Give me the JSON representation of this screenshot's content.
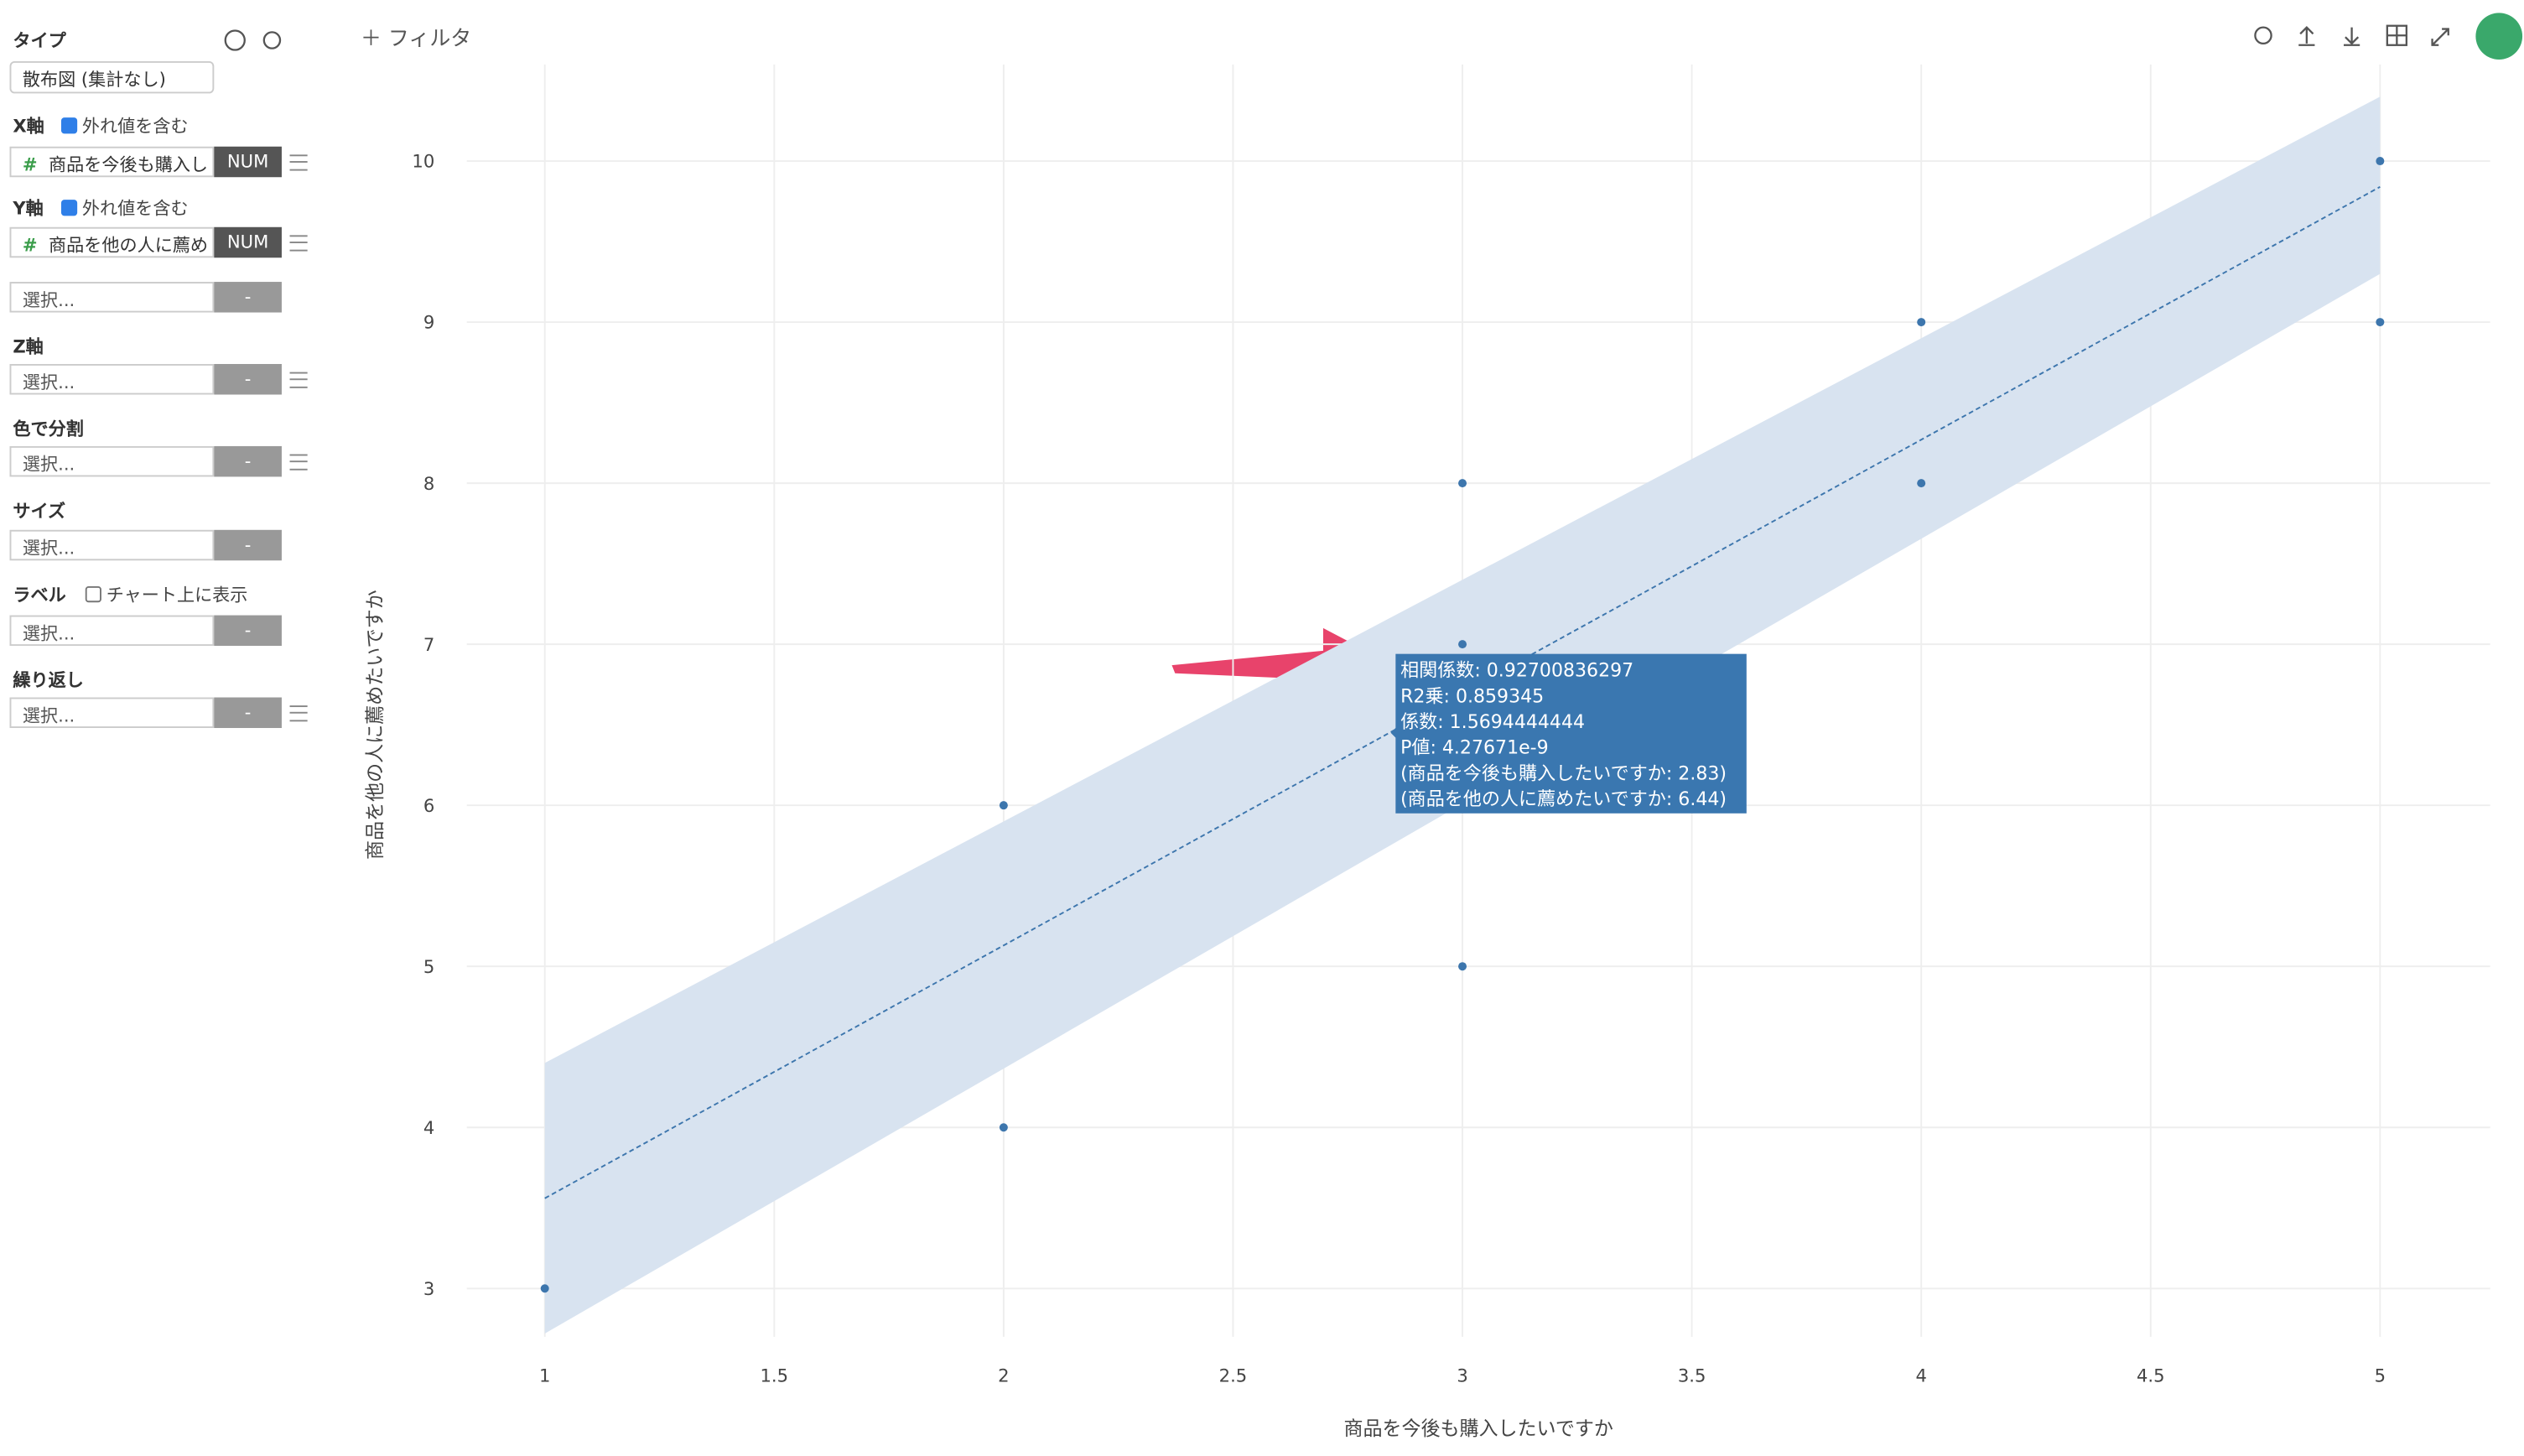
{
  "toolbar": {
    "filter": "フィルタ"
  },
  "sidebar": {
    "type_label": "タイプ",
    "type_value": "散布図 (集計なし)",
    "x_label": "X軸",
    "x_outliers": "外れ値を含む",
    "x_field": "商品を今後も購入し",
    "x_field_type": "NUM",
    "y_label": "Y軸",
    "y_outliers": "外れ値を含む",
    "y_field": "商品を他の人に薦め",
    "y_field_type": "NUM",
    "placeholder": "選択...",
    "empty_type": "-",
    "z_label": "Z軸",
    "color_label": "色で分割",
    "size_label": "サイズ",
    "label_label": "ラベル",
    "label_show": "チャート上に表示",
    "repeat_label": "繰り返し"
  },
  "chart_data": {
    "type": "scatter",
    "color": "#3d76ad",
    "x_label": "商品を今後も購入したいですか",
    "y_label": "商品を他の人に薦めたいですか",
    "x": [
      1,
      2,
      2,
      3,
      3,
      3,
      4,
      4,
      5,
      5
    ],
    "values": [
      3,
      4,
      6,
      5,
      7,
      8,
      8,
      9,
      9,
      10
    ],
    "trendline": {
      "x": [
        1,
        5
      ],
      "values": [
        3.56,
        9.84
      ]
    },
    "band": {
      "x": [
        1,
        5
      ],
      "upper": [
        4.4,
        10.4
      ],
      "lower": [
        2.72,
        9.3
      ],
      "color": "#d8e3f0"
    },
    "xlim": [
      0.83,
      5.24
    ],
    "ylim": [
      2.7,
      10.6
    ],
    "xticks": [
      1,
      1.5,
      2,
      2.5,
      3,
      3.5,
      4,
      4.5,
      5
    ],
    "yticks": [
      3,
      4,
      5,
      6,
      7,
      8,
      9,
      10
    ],
    "grid": true,
    "annotations": [
      "相関係数: 0.92700836297",
      "R2乗: 0.859345",
      "係数: 1.5694444444",
      "P値: 4.27671e-9",
      "(商品を今後も購入したいですか: 2.83)",
      "(商品を他の人に薦めたいですか: 6.44)"
    ]
  }
}
